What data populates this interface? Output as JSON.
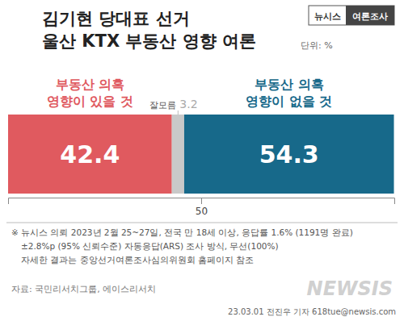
{
  "chart_data": {
    "type": "bar",
    "orientation": "horizontal",
    "stacked": true,
    "data_labels": true,
    "title": "김기현 당대표 선거\n울산 KTX 부동산 영향 여론",
    "unit": "단위: %",
    "badge": [
      "뉴시스",
      "여론조사"
    ],
    "categories": [
      null
    ],
    "series": [
      {
        "name": "부동산 의혹\n영향이 있을 것",
        "color": "#e05a5f",
        "values": [
          42.4
        ]
      },
      {
        "name": "잘모름",
        "color": "#c9c9c9",
        "values": [
          3.2
        ]
      },
      {
        "name": "부동산 의혹\n영향이 없을 것",
        "color": "#17698a",
        "values": [
          54.3
        ]
      }
    ],
    "xlim": [
      0,
      100
    ],
    "xticks": [
      50
    ],
    "notes": [
      "※ 뉴시스 의뢰 2023년 2월 25~27일, 전국 만 18세 이상, 응답률 1.6% (1191명 완료)",
      "±2.8%p (95% 신뢰수준) 자동응답(ARS) 조사 방식, 무선(100%)",
      "자세한 결과는 중앙선거여론조사심의위원회 홈페이지 참조"
    ],
    "source": "자료: 국민리서치그룹, 에이스리서치",
    "logo": "NEWSIS",
    "credit": "23.03.01 전진우 기자 618tue@newsis.com"
  }
}
